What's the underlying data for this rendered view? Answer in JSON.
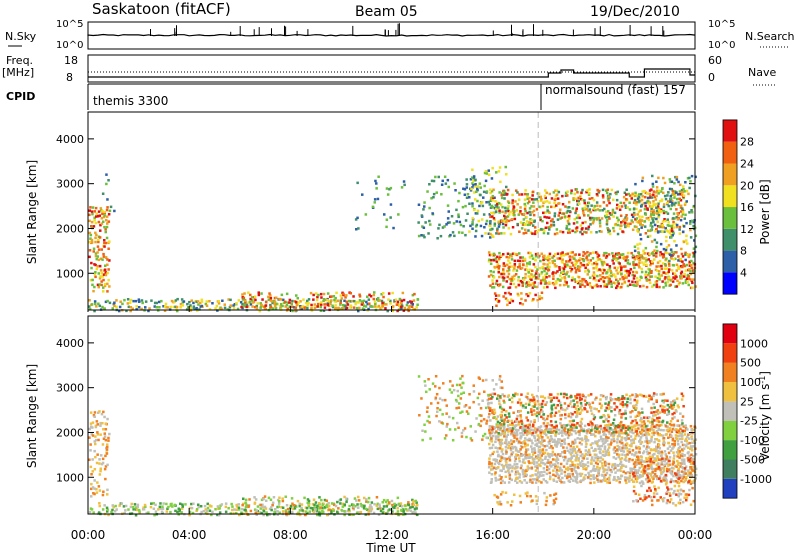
{
  "header": {
    "station": "Saskatoon (fitACF)",
    "beam": "Beam 05",
    "date": "19/Dec/2010"
  },
  "strips": {
    "nsky_label": "N.Sky",
    "nsearch_label": "N.Search",
    "noise_left_ticks": [
      "10^5",
      "10^0"
    ],
    "noise_right_ticks": [
      "10^5",
      "10^0"
    ],
    "freq_label": "Freq.",
    "freq_unit": "[MHz]",
    "freq_left_ticks": [
      "18",
      "8"
    ],
    "nave_label": "Nave",
    "nave_right_ticks": [
      "60",
      "0"
    ],
    "cpid_label": "CPID",
    "cpid_segments": [
      {
        "name": "themis 3300",
        "start": 0.0,
        "end": 17.8
      },
      {
        "name": "normalsound (fast) 157",
        "start": 17.8,
        "end": 24.0
      }
    ]
  },
  "chart_data": [
    {
      "type": "heatmap",
      "title": "Power",
      "ylabel": "Slant Range [km]",
      "xlabel": "",
      "x_range_hours": [
        0,
        24
      ],
      "ylim": [
        180,
        4600
      ],
      "yticks": [
        1000,
        2000,
        3000,
        4000
      ],
      "colorbar_label": "Power [dB]",
      "colorbar_ticks": [
        "4",
        "8",
        "12",
        "16",
        "20",
        "24",
        "28"
      ],
      "colorbar_colors": [
        "#0000ff",
        "#2d5fa8",
        "#3f8f6a",
        "#6abf3c",
        "#f0e020",
        "#f0a020",
        "#f06010",
        "#e01010"
      ],
      "range_min_km": 180,
      "range_max_km": 4600,
      "scatter_regions": [
        {
          "t": [
            0.0,
            0.8
          ],
          "r": [
            600,
            2500
          ],
          "density": 0.5,
          "pal": [
            3,
            4,
            5,
            6,
            7
          ]
        },
        {
          "t": [
            0.5,
            1.0
          ],
          "r": [
            2400,
            3400
          ],
          "density": 0.08,
          "pal": [
            1,
            2,
            3
          ]
        },
        {
          "t": [
            0.0,
            13.0
          ],
          "r": [
            180,
            450
          ],
          "density": 0.45,
          "pal": [
            1,
            2,
            3,
            4,
            5
          ]
        },
        {
          "t": [
            6.0,
            13.0
          ],
          "r": [
            180,
            600
          ],
          "density": 0.3,
          "pal": [
            3,
            4,
            5,
            6,
            7
          ]
        },
        {
          "t": [
            10.5,
            12.5
          ],
          "r": [
            2000,
            3200
          ],
          "density": 0.05,
          "pal": [
            1,
            2,
            3
          ]
        },
        {
          "t": [
            13.0,
            15.5
          ],
          "r": [
            1800,
            3200
          ],
          "density": 0.12,
          "pal": [
            1,
            2,
            3
          ]
        },
        {
          "t": [
            15.0,
            16.5
          ],
          "r": [
            1800,
            3400
          ],
          "density": 0.25,
          "pal": [
            1,
            2,
            3,
            4
          ]
        },
        {
          "t": [
            15.8,
            24.0
          ],
          "r": [
            700,
            1500
          ],
          "density": 0.65,
          "pal": [
            3,
            4,
            5,
            6,
            7
          ]
        },
        {
          "t": [
            15.8,
            23.5
          ],
          "r": [
            1900,
            2900
          ],
          "density": 0.45,
          "pal": [
            2,
            3,
            4,
            5,
            6,
            7
          ]
        },
        {
          "t": [
            16.0,
            18.0
          ],
          "r": [
            300,
            600
          ],
          "density": 0.4,
          "pal": [
            4,
            5,
            6,
            7
          ]
        },
        {
          "t": [
            21.5,
            24.0
          ],
          "r": [
            1300,
            3200
          ],
          "density": 0.25,
          "pal": [
            1,
            2,
            3,
            4,
            5
          ]
        }
      ]
    },
    {
      "type": "heatmap",
      "title": "Velocity",
      "ylabel": "Slant Range [km]",
      "xlabel": "Time UT",
      "x_range_hours": [
        0,
        24
      ],
      "xticks": [
        "00:00",
        "04:00",
        "08:00",
        "12:00",
        "16:00",
        "20:00",
        "00:00"
      ],
      "ylim": [
        180,
        4600
      ],
      "yticks": [
        1000,
        2000,
        3000,
        4000
      ],
      "colorbar_label": "Velocity [m s^-1]",
      "colorbar_ticks": [
        "1000",
        "500",
        "100",
        "25",
        "-25",
        "-100",
        "-500",
        "-1000"
      ],
      "colorbar_colors": [
        "#2040c0",
        "#3f7f5f",
        "#40a040",
        "#80d040",
        "#c0c0b8",
        "#f0c040",
        "#f08020",
        "#f04010",
        "#e00010"
      ],
      "scatter_regions": [
        {
          "t": [
            0.0,
            0.8
          ],
          "r": [
            600,
            2500
          ],
          "density": 0.35,
          "pal": [
            4,
            5,
            6
          ]
        },
        {
          "t": [
            0.0,
            13.0
          ],
          "r": [
            180,
            450
          ],
          "density": 0.45,
          "pal": [
            2,
            3,
            4,
            5
          ]
        },
        {
          "t": [
            6.0,
            13.0
          ],
          "r": [
            180,
            600
          ],
          "density": 0.3,
          "pal": [
            2,
            3,
            4,
            5,
            6
          ]
        },
        {
          "t": [
            13.0,
            16.5
          ],
          "r": [
            1800,
            3300
          ],
          "density": 0.18,
          "pal": [
            4,
            3,
            6
          ]
        },
        {
          "t": [
            15.8,
            24.0
          ],
          "r": [
            900,
            2200
          ],
          "density": 0.7,
          "pal": [
            4,
            4,
            4,
            5,
            6
          ]
        },
        {
          "t": [
            15.8,
            23.5
          ],
          "r": [
            2000,
            2900
          ],
          "density": 0.45,
          "pal": [
            5,
            6,
            7,
            4,
            2
          ]
        },
        {
          "t": [
            16.0,
            18.5
          ],
          "r": [
            400,
            700
          ],
          "density": 0.35,
          "pal": [
            4,
            5,
            6
          ]
        },
        {
          "t": [
            21.5,
            24.0
          ],
          "r": [
            400,
            1500
          ],
          "density": 0.35,
          "pal": [
            5,
            6,
            7,
            4
          ]
        }
      ]
    }
  ],
  "axis_labels": {
    "slant_range": "Slant Range [km]",
    "power": "Power [dB]",
    "velocity_prefix": "Velocity [m s",
    "velocity_sup": "-1",
    "velocity_suffix": "]",
    "time": "Time UT"
  }
}
